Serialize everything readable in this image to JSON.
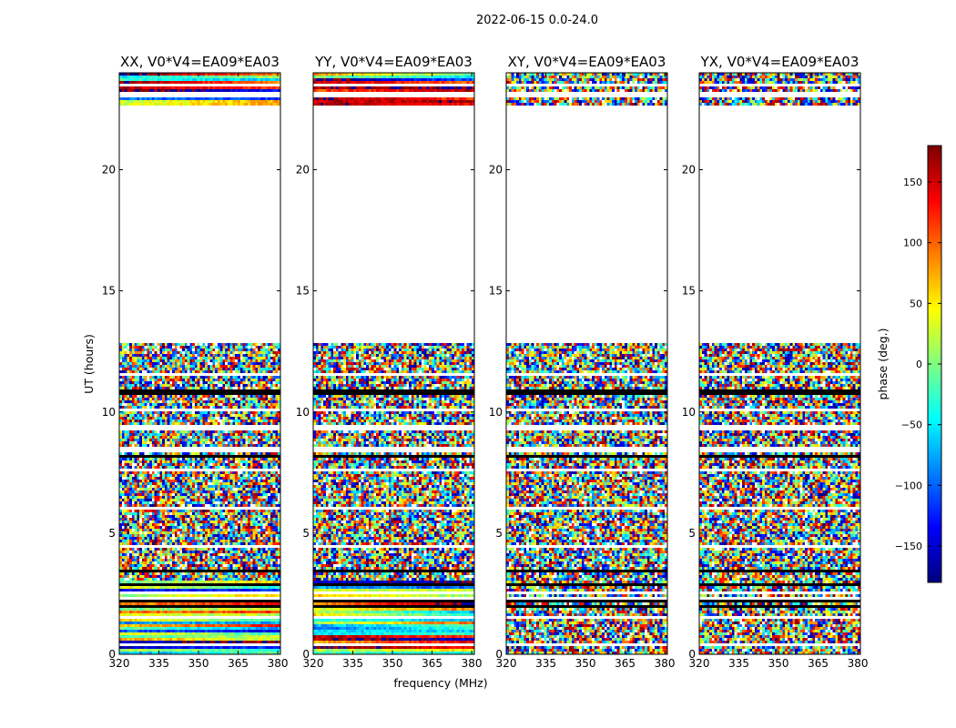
{
  "chart_data": {
    "type": "heatmap",
    "suptitle": "2022-06-15 0.0-24.0",
    "xlabel": "frequency (MHz)",
    "ylabel": "UT (hours)",
    "x_range": [
      320,
      381
    ],
    "xticks": [
      320,
      335,
      350,
      365,
      380
    ],
    "ylim": [
      0,
      24
    ],
    "yticks": [
      0,
      5,
      10,
      15,
      20
    ],
    "colorbar": {
      "label": "phase (deg.)",
      "range": [
        -180,
        180
      ],
      "ticks": [
        150,
        100,
        50,
        0,
        -50,
        -100,
        -150
      ],
      "tick_labels": [
        "150",
        "100",
        "50",
        "0",
        "−50",
        "−100",
        "−150"
      ],
      "colormap": "jet"
    },
    "panels": [
      {
        "title": "XX, V0*V4=EA09*EA03",
        "polarization": "XX",
        "structure": "coherent"
      },
      {
        "title": "YY, V0*V4=EA09*EA03",
        "polarization": "YY",
        "structure": "coherent"
      },
      {
        "title": "XY, V0*V4=EA09*EA03",
        "polarization": "XY",
        "structure": "noise"
      },
      {
        "title": "YX, V0*V4=EA09*EA03",
        "polarization": "YX",
        "structure": "noise"
      }
    ],
    "data_segments_hours": [
      [
        0,
        12.8
      ],
      [
        22.6,
        24
      ]
    ],
    "gap_hours": [
      12.8,
      22.6
    ],
    "flagged_rows_white_hours": [
      0.35,
      0.4,
      1.5,
      2.35,
      2.55,
      4.5,
      6.0,
      7.6,
      8.45,
      8.55,
      9.3,
      9.4,
      10.05,
      11.55,
      23.1,
      23.5
    ],
    "flagged_rows_black_hours": [
      0.0,
      1.95,
      2.2,
      2.85,
      3.4,
      3.6,
      5.3,
      8.15,
      10.1,
      10.8,
      10.85,
      22.65
    ]
  }
}
